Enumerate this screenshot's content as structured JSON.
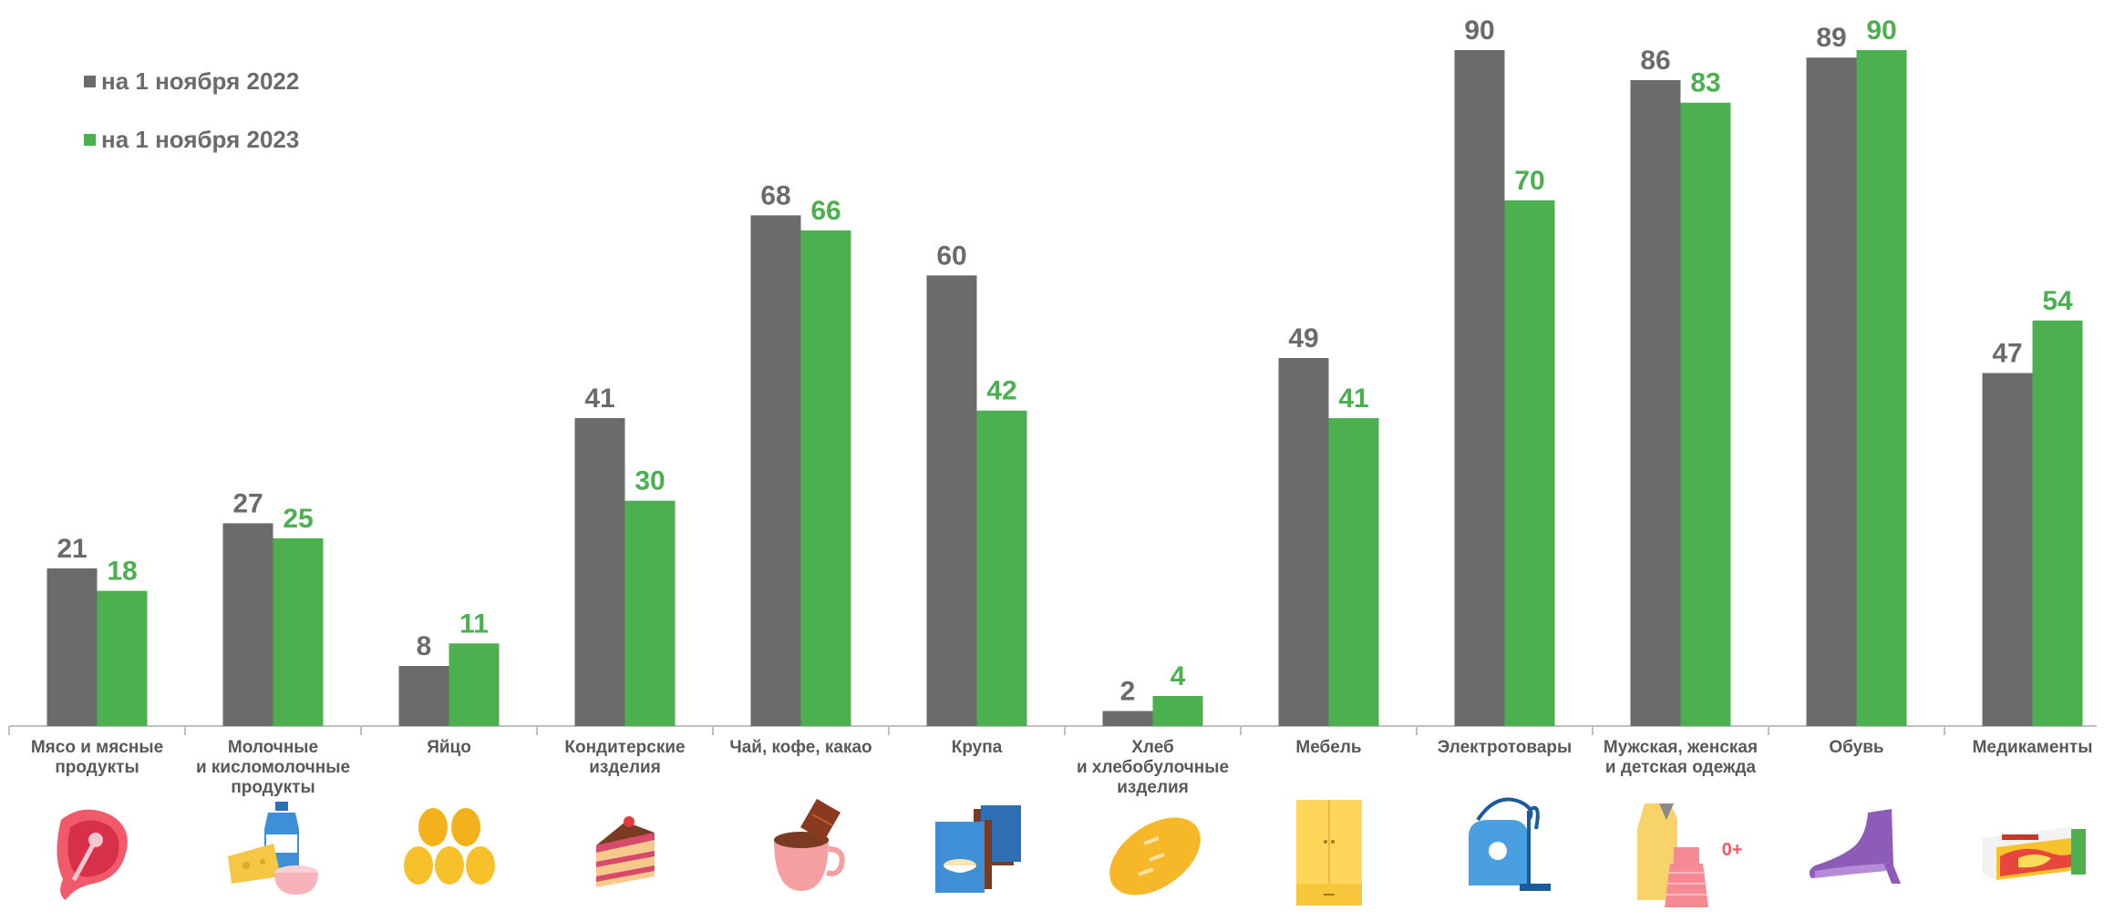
{
  "legend": {
    "items": [
      {
        "label": "на 1 ноября 2022",
        "color": "#6b6b6b"
      },
      {
        "label": "на 1 ноября 2023",
        "color": "#4caf50"
      }
    ]
  },
  "colors": {
    "series_2022": "#6b6b6b",
    "series_2023": "#4caf50",
    "label_2022": "#6b6b6b",
    "label_2023": "#4caf50"
  },
  "categories": [
    {
      "label": "Мясо и мясные\nпродукты",
      "icon": "meat-steak-icon"
    },
    {
      "label": "Молочные\nи кисломолочные\nпродукты",
      "icon": "dairy-products-icon"
    },
    {
      "label": "Яйцо",
      "icon": "eggs-icon"
    },
    {
      "label": "Кондитерские\nизделия",
      "icon": "cake-slice-icon"
    },
    {
      "label": "Чай, кофе, какао",
      "icon": "cocoa-cup-icon"
    },
    {
      "label": "Крупа",
      "icon": "cereal-boxes-icon"
    },
    {
      "label": "Хлеб\nи хлебобулочные\nизделия",
      "icon": "bread-loaf-icon"
    },
    {
      "label": "Мебель",
      "icon": "wardrobe-icon"
    },
    {
      "label": "Электротовары",
      "icon": "vacuum-cleaner-icon"
    },
    {
      "label": "Мужская, женская\nи детская одежда",
      "icon": "clothing-coat-dress-icon"
    },
    {
      "label": "Обувь",
      "icon": "boot-shoe-icon"
    },
    {
      "label": "Медикаменты",
      "icon": "medicine-box-icon"
    }
  ],
  "icon_badges": {
    "clothing-coat-dress-icon": "0+"
  },
  "chart_data": {
    "type": "bar",
    "categories": [
      "Мясо и мясные продукты",
      "Молочные и кисломолочные продукты",
      "Яйцо",
      "Кондитерские изделия",
      "Чай, кофе, какао",
      "Крупа",
      "Хлеб и хлебобулочные изделия",
      "Мебель",
      "Электротовары",
      "Мужская, женская и детская одежда",
      "Обувь",
      "Медикаменты"
    ],
    "series": [
      {
        "name": "на 1 ноября 2022",
        "values": [
          21,
          27,
          8,
          41,
          68,
          60,
          2,
          49,
          90,
          86,
          89,
          47
        ]
      },
      {
        "name": "на 1 ноября 2023",
        "values": [
          18,
          25,
          11,
          30,
          66,
          42,
          4,
          41,
          70,
          83,
          90,
          54
        ]
      }
    ],
    "ylim": [
      0,
      90
    ],
    "grid": false,
    "legend_position": "top-left",
    "data_labels": true
  }
}
